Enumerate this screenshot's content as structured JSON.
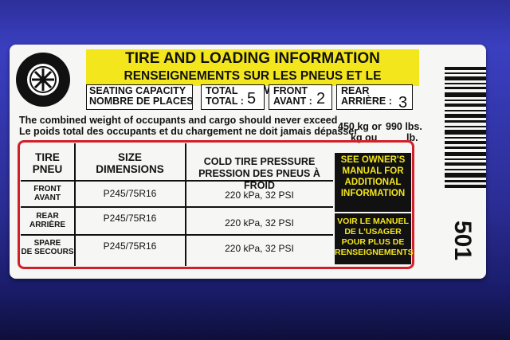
{
  "header": {
    "title_en": "TIRE AND LOADING INFORMATION",
    "title_fr": "RENSEIGNEMENTS SUR LES PNEUS ET LE CHARGEMENT"
  },
  "seating": {
    "label_en": "SEATING CAPACITY",
    "label_fr": "NOMBRE DE PLACES",
    "total_en": "TOTAL",
    "total_fr": "TOTAL :",
    "total": 5,
    "front_en": "FRONT",
    "front_fr": "AVANT :",
    "front": 2,
    "rear_en": "REAR",
    "rear_fr": "ARRIÈRE :",
    "rear": 3
  },
  "weight": {
    "text_en": "The combined weight of occupants and cargo should never exceed",
    "text_fr": "Le poids total des occupants et du chargement ne doit jamais dépasser",
    "kg_en": "450 kg or",
    "lbs_en": "990 lbs.",
    "kg_fr": "kg ou",
    "lbs_fr": "lb."
  },
  "table": {
    "headers": [
      [
        "TIRE",
        "PNEU"
      ],
      [
        "SIZE",
        "DIMENSIONS"
      ],
      [
        "COLD TIRE PRESSURE",
        "PRESSION DES PNEUS À FROID"
      ]
    ],
    "rows": [
      [
        [
          "FRONT",
          "AVANT"
        ],
        "P245/75R16",
        "220 kPa, 32 PSI"
      ],
      [
        [
          "REAR",
          "ARRIÈRE"
        ],
        "P245/75R16",
        "220 kPa, 32 PSI"
      ],
      [
        [
          "SPARE",
          "DE SECOURS"
        ],
        "P245/75R16",
        "220 kPa, 32 PSI"
      ]
    ],
    "note_en": "SEE OWNER'S MANUAL FOR ADDITIONAL INFORMATION",
    "note_fr": "VOIR LE MANUEL DE L'USAGER POUR PLUS DE RENSEIGNEMENTS"
  },
  "code": "501"
}
